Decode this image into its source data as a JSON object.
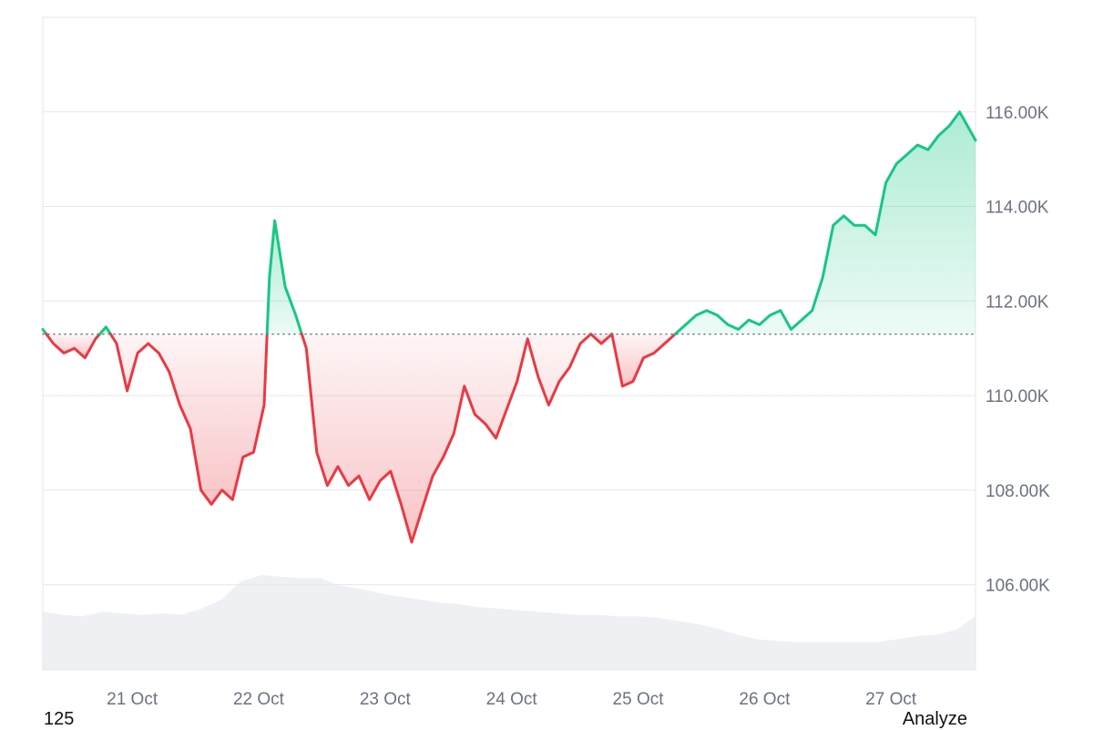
{
  "footer": {
    "left_text": "125",
    "right_text": "Analyze"
  },
  "colors": {
    "up": "#16c784",
    "down": "#ea3943",
    "volume": "#eef0f3",
    "grid": "#e5e7eb",
    "tick": "#6b7280"
  },
  "chart_data": {
    "type": "line",
    "title": "",
    "xlabel": "",
    "ylabel": "",
    "baseline": 111300,
    "ylim": [
      104200,
      118000
    ],
    "y_ticks": [
      106000,
      108000,
      110000,
      112000,
      114000,
      116000
    ],
    "y_tick_labels": [
      "106.00K",
      "108.00K",
      "110.00K",
      "112.00K",
      "114.00K",
      "116.00K"
    ],
    "x_range": [
      "2025-10-20T06:00",
      "2025-10-27T15:00"
    ],
    "x_ticks": [
      "2025-10-21T00:00",
      "2025-10-22T00:00",
      "2025-10-23T00:00",
      "2025-10-24T00:00",
      "2025-10-25T00:00",
      "2025-10-26T00:00",
      "2025-10-27T00:00"
    ],
    "x_tick_labels": [
      "21 Oct",
      "22 Oct",
      "23 Oct",
      "24 Oct",
      "25 Oct",
      "26 Oct",
      "27 Oct"
    ],
    "legend": "none",
    "grid": true,
    "series": [
      {
        "kind": "price",
        "points": [
          [
            "2025-10-20T06:00",
            111400
          ],
          [
            "2025-10-20T08:00",
            111100
          ],
          [
            "2025-10-20T10:00",
            110900
          ],
          [
            "2025-10-20T12:00",
            111000
          ],
          [
            "2025-10-20T14:00",
            110800
          ],
          [
            "2025-10-20T16:00",
            111200
          ],
          [
            "2025-10-20T18:00",
            111450
          ],
          [
            "2025-10-20T20:00",
            111100
          ],
          [
            "2025-10-20T22:00",
            110100
          ],
          [
            "2025-10-21T00:00",
            110900
          ],
          [
            "2025-10-21T02:00",
            111100
          ],
          [
            "2025-10-21T04:00",
            110900
          ],
          [
            "2025-10-21T06:00",
            110500
          ],
          [
            "2025-10-21T08:00",
            109800
          ],
          [
            "2025-10-21T10:00",
            109300
          ],
          [
            "2025-10-21T12:00",
            108000
          ],
          [
            "2025-10-21T14:00",
            107700
          ],
          [
            "2025-10-21T16:00",
            108000
          ],
          [
            "2025-10-21T18:00",
            107800
          ],
          [
            "2025-10-21T20:00",
            108700
          ],
          [
            "2025-10-21T22:00",
            108800
          ],
          [
            "2025-10-22T00:00",
            109800
          ],
          [
            "2025-10-22T01:00",
            112500
          ],
          [
            "2025-10-22T02:00",
            113700
          ],
          [
            "2025-10-22T04:00",
            112300
          ],
          [
            "2025-10-22T06:00",
            111700
          ],
          [
            "2025-10-22T08:00",
            111000
          ],
          [
            "2025-10-22T10:00",
            108800
          ],
          [
            "2025-10-22T12:00",
            108100
          ],
          [
            "2025-10-22T14:00",
            108500
          ],
          [
            "2025-10-22T16:00",
            108100
          ],
          [
            "2025-10-22T18:00",
            108300
          ],
          [
            "2025-10-22T20:00",
            107800
          ],
          [
            "2025-10-22T22:00",
            108200
          ],
          [
            "2025-10-23T00:00",
            108400
          ],
          [
            "2025-10-23T02:00",
            107700
          ],
          [
            "2025-10-23T04:00",
            106900
          ],
          [
            "2025-10-23T06:00",
            107600
          ],
          [
            "2025-10-23T08:00",
            108300
          ],
          [
            "2025-10-23T10:00",
            108700
          ],
          [
            "2025-10-23T12:00",
            109200
          ],
          [
            "2025-10-23T14:00",
            110200
          ],
          [
            "2025-10-23T16:00",
            109600
          ],
          [
            "2025-10-23T18:00",
            109400
          ],
          [
            "2025-10-23T20:00",
            109100
          ],
          [
            "2025-10-23T22:00",
            109700
          ],
          [
            "2025-10-24T00:00",
            110300
          ],
          [
            "2025-10-24T02:00",
            111200
          ],
          [
            "2025-10-24T04:00",
            110400
          ],
          [
            "2025-10-24T06:00",
            109800
          ],
          [
            "2025-10-24T08:00",
            110300
          ],
          [
            "2025-10-24T10:00",
            110600
          ],
          [
            "2025-10-24T12:00",
            111100
          ],
          [
            "2025-10-24T14:00",
            111300
          ],
          [
            "2025-10-24T16:00",
            111100
          ],
          [
            "2025-10-24T18:00",
            111300
          ],
          [
            "2025-10-24T20:00",
            110200
          ],
          [
            "2025-10-24T22:00",
            110300
          ],
          [
            "2025-10-25T00:00",
            110800
          ],
          [
            "2025-10-25T02:00",
            110900
          ],
          [
            "2025-10-25T04:00",
            111100
          ],
          [
            "2025-10-25T06:00",
            111300
          ],
          [
            "2025-10-25T08:00",
            111500
          ],
          [
            "2025-10-25T10:00",
            111700
          ],
          [
            "2025-10-25T12:00",
            111800
          ],
          [
            "2025-10-25T14:00",
            111700
          ],
          [
            "2025-10-25T16:00",
            111500
          ],
          [
            "2025-10-25T18:00",
            111400
          ],
          [
            "2025-10-25T20:00",
            111600
          ],
          [
            "2025-10-25T22:00",
            111500
          ],
          [
            "2025-10-26T00:00",
            111700
          ],
          [
            "2025-10-26T02:00",
            111800
          ],
          [
            "2025-10-26T04:00",
            111400
          ],
          [
            "2025-10-26T06:00",
            111600
          ],
          [
            "2025-10-26T08:00",
            111800
          ],
          [
            "2025-10-26T10:00",
            112500
          ],
          [
            "2025-10-26T12:00",
            113600
          ],
          [
            "2025-10-26T14:00",
            113800
          ],
          [
            "2025-10-26T16:00",
            113600
          ],
          [
            "2025-10-26T18:00",
            113600
          ],
          [
            "2025-10-26T20:00",
            113400
          ],
          [
            "2025-10-26T22:00",
            114500
          ],
          [
            "2025-10-27T00:00",
            114900
          ],
          [
            "2025-10-27T02:00",
            115100
          ],
          [
            "2025-10-27T04:00",
            115300
          ],
          [
            "2025-10-27T06:00",
            115200
          ],
          [
            "2025-10-27T08:00",
            115500
          ],
          [
            "2025-10-27T10:00",
            115700
          ],
          [
            "2025-10-27T12:00",
            116000
          ],
          [
            "2025-10-27T15:00",
            115400
          ]
        ]
      },
      {
        "kind": "volume",
        "values": [
          0.38,
          0.36,
          0.35,
          0.38,
          0.37,
          0.36,
          0.37,
          0.36,
          0.4,
          0.46,
          0.58,
          0.62,
          0.61,
          0.6,
          0.6,
          0.55,
          0.53,
          0.5,
          0.48,
          0.46,
          0.44,
          0.43,
          0.41,
          0.4,
          0.39,
          0.38,
          0.37,
          0.36,
          0.36,
          0.35,
          0.35,
          0.34,
          0.32,
          0.3,
          0.27,
          0.23,
          0.2,
          0.19,
          0.18,
          0.18,
          0.18,
          0.18,
          0.18,
          0.2,
          0.22,
          0.23,
          0.26,
          0.35
        ]
      }
    ]
  }
}
